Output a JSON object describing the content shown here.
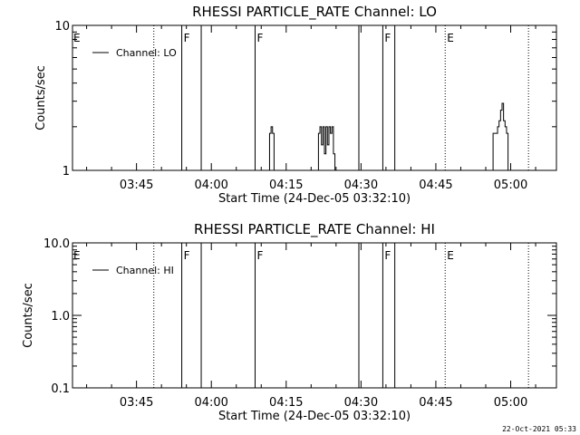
{
  "chart_data": [
    {
      "type": "line",
      "title": "RHESSI PARTICLE_RATE Channel: LO",
      "xlabel": "Start Time (24-Dec-05 03:32:10)",
      "ylabel": "Counts/sec",
      "x_unit": "minutes after 03:32:10",
      "xlim": [
        0.0,
        97.0
      ],
      "ylim": [
        1,
        10
      ],
      "yscale": "log",
      "x_tick_labels": [
        "03:45",
        "04:00",
        "04:15",
        "04:30",
        "04:45",
        "05:00"
      ],
      "x_ticks": [
        12.83,
        27.83,
        42.83,
        57.83,
        72.83,
        87.83
      ],
      "y_tick_labels": [
        "1",
        "10"
      ],
      "y_ticks": [
        1,
        10
      ],
      "legend": "top-left",
      "series": [
        {
          "name": "Channel: LO",
          "x": [
            0.0,
            39.1,
            39.2,
            39.5,
            39.8,
            40.1,
            40.4,
            49.0,
            49.3,
            49.6,
            49.9,
            50.2,
            50.5,
            50.8,
            51.1,
            51.4,
            51.7,
            52.0,
            52.3,
            52.6,
            52.9,
            84.0,
            84.3,
            84.6,
            84.9,
            85.2,
            85.5,
            85.8,
            86.1,
            86.4,
            86.7,
            87.0,
            87.3,
            95.5
          ],
          "y": [
            1,
            1,
            1,
            1.8,
            2.0,
            1.8,
            1,
            1,
            1.8,
            2.0,
            1.5,
            2.0,
            1.3,
            2.0,
            1.5,
            2.0,
            1.8,
            2.0,
            1.3,
            1,
            1,
            1,
            1.8,
            1.8,
            1.8,
            2.0,
            2.2,
            2.6,
            2.9,
            2.2,
            2.0,
            1.8,
            1,
            1
          ]
        }
      ],
      "vlines": [
        {
          "x": 16.3,
          "style": "dotted",
          "label": ""
        },
        {
          "x": 21.9,
          "style": "solid",
          "label": "F"
        },
        {
          "x": 25.8,
          "style": "solid",
          "label": ""
        },
        {
          "x": 36.6,
          "style": "solid",
          "label": "F"
        },
        {
          "x": 57.4,
          "style": "solid",
          "label": ""
        },
        {
          "x": 62.2,
          "style": "solid",
          "label": "F"
        },
        {
          "x": 64.6,
          "style": "solid",
          "label": ""
        },
        {
          "x": 74.7,
          "style": "dotted",
          "label": "E"
        },
        {
          "x": 91.4,
          "style": "dotted",
          "label": ""
        }
      ],
      "left_marker": "E"
    },
    {
      "type": "line",
      "title": "RHESSI PARTICLE_RATE Channel: HI",
      "xlabel": "Start Time (24-Dec-05 03:32:10)",
      "ylabel": "Counts/sec",
      "x_unit": "minutes after 03:32:10",
      "xlim": [
        0.0,
        97.0
      ],
      "ylim": [
        0.1,
        10.0
      ],
      "yscale": "log",
      "x_tick_labels": [
        "03:45",
        "04:00",
        "04:15",
        "04:30",
        "04:45",
        "05:00"
      ],
      "x_ticks": [
        12.83,
        27.83,
        42.83,
        57.83,
        72.83,
        87.83
      ],
      "y_tick_labels": [
        "0.1",
        "1.0",
        "10.0"
      ],
      "y_ticks": [
        0.1,
        1.0,
        10.0
      ],
      "legend": "top-left",
      "series": [
        {
          "name": "Channel: HI",
          "x": [],
          "y": []
        }
      ],
      "vlines": [
        {
          "x": 16.3,
          "style": "dotted",
          "label": ""
        },
        {
          "x": 21.9,
          "style": "solid",
          "label": "F"
        },
        {
          "x": 25.8,
          "style": "solid",
          "label": ""
        },
        {
          "x": 36.6,
          "style": "solid",
          "label": "F"
        },
        {
          "x": 57.4,
          "style": "solid",
          "label": ""
        },
        {
          "x": 62.2,
          "style": "solid",
          "label": "F"
        },
        {
          "x": 64.6,
          "style": "solid",
          "label": ""
        },
        {
          "x": 74.7,
          "style": "dotted",
          "label": "E"
        },
        {
          "x": 91.4,
          "style": "dotted",
          "label": ""
        }
      ],
      "left_marker": "E"
    }
  ],
  "footer": {
    "timestamp": "22-Oct-2021 05:33"
  }
}
